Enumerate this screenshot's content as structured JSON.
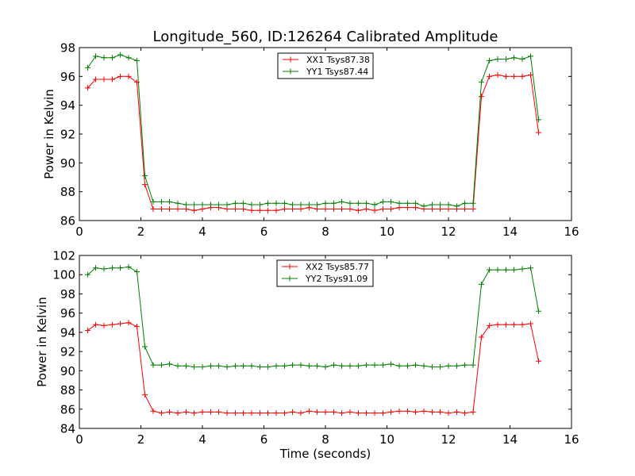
{
  "chart_data": [
    {
      "type": "line",
      "title": "Longitude_560, ID:126264 Calibrated Amplitude",
      "xlabel": "",
      "ylabel": "Power in Kelvin",
      "xlim": [
        0,
        16
      ],
      "ylim": [
        86,
        98
      ],
      "xticks": [
        "0",
        "2",
        "4",
        "6",
        "8",
        "10",
        "12",
        "14",
        "16"
      ],
      "yticks": [
        "86",
        "88",
        "90",
        "92",
        "94",
        "96",
        "98"
      ],
      "grid": false,
      "legend_position": "top-center",
      "x": [
        0.27,
        0.53,
        0.8,
        1.07,
        1.33,
        1.6,
        1.87,
        2.13,
        2.4,
        2.67,
        2.93,
        3.2,
        3.47,
        3.73,
        4.0,
        4.27,
        4.53,
        4.8,
        5.07,
        5.33,
        5.6,
        5.87,
        6.13,
        6.4,
        6.67,
        6.93,
        7.2,
        7.47,
        7.73,
        8.0,
        8.27,
        8.53,
        8.8,
        9.07,
        9.33,
        9.6,
        9.87,
        10.13,
        10.4,
        10.67,
        10.93,
        11.2,
        11.47,
        11.73,
        12.0,
        12.27,
        12.53,
        12.8,
        13.07,
        13.33,
        13.6,
        13.87,
        14.13,
        14.4,
        14.67,
        14.93,
        15.2
      ],
      "series": [
        {
          "name": "XX1 Tsys87.38",
          "color": "#ff0000",
          "values": [
            95.2,
            95.8,
            95.8,
            95.8,
            96.0,
            96.0,
            95.6,
            88.5,
            86.8,
            86.8,
            86.8,
            86.8,
            86.8,
            86.7,
            86.8,
            86.9,
            86.9,
            86.8,
            86.8,
            86.8,
            86.7,
            86.7,
            86.7,
            86.7,
            86.8,
            86.8,
            86.8,
            86.9,
            86.8,
            86.8,
            86.8,
            86.8,
            86.8,
            86.7,
            86.8,
            86.7,
            86.8,
            86.8,
            86.9,
            86.9,
            86.9,
            86.8,
            86.8,
            86.8,
            86.8,
            86.8,
            86.8,
            86.8,
            94.6,
            96.0,
            96.1,
            96.0,
            96.0,
            96.0,
            96.1,
            92.1,
            null
          ]
        },
        {
          "name": "YY1 Tsys87.44",
          "color": "#007f00",
          "values": [
            96.6,
            97.4,
            97.3,
            97.3,
            97.5,
            97.3,
            97.1,
            89.1,
            87.3,
            87.3,
            87.3,
            87.2,
            87.1,
            87.1,
            87.1,
            87.1,
            87.1,
            87.1,
            87.2,
            87.2,
            87.1,
            87.1,
            87.2,
            87.2,
            87.2,
            87.1,
            87.1,
            87.1,
            87.1,
            87.2,
            87.2,
            87.3,
            87.2,
            87.2,
            87.2,
            87.1,
            87.3,
            87.3,
            87.2,
            87.2,
            87.2,
            87.0,
            87.1,
            87.1,
            87.1,
            87.0,
            87.2,
            87.2,
            95.6,
            97.1,
            97.2,
            97.2,
            97.3,
            97.2,
            97.4,
            93.0,
            null
          ]
        }
      ]
    },
    {
      "type": "line",
      "title": "",
      "xlabel": "Time (seconds)",
      "ylabel": "Power in Kelvin",
      "xlim": [
        0,
        16
      ],
      "ylim": [
        84,
        102
      ],
      "xticks": [
        "0",
        "2",
        "4",
        "6",
        "8",
        "10",
        "12",
        "14",
        "16"
      ],
      "yticks": [
        "84",
        "86",
        "88",
        "90",
        "92",
        "94",
        "96",
        "98",
        "100",
        "102"
      ],
      "grid": false,
      "legend_position": "top-center",
      "x": [
        0.27,
        0.53,
        0.8,
        1.07,
        1.33,
        1.6,
        1.87,
        2.13,
        2.4,
        2.67,
        2.93,
        3.2,
        3.47,
        3.73,
        4.0,
        4.27,
        4.53,
        4.8,
        5.07,
        5.33,
        5.6,
        5.87,
        6.13,
        6.4,
        6.67,
        6.93,
        7.2,
        7.47,
        7.73,
        8.0,
        8.27,
        8.53,
        8.8,
        9.07,
        9.33,
        9.6,
        9.87,
        10.13,
        10.4,
        10.67,
        10.93,
        11.2,
        11.47,
        11.73,
        12.0,
        12.27,
        12.53,
        12.8,
        13.07,
        13.33,
        13.6,
        13.87,
        14.13,
        14.4,
        14.67,
        14.93,
        15.2
      ],
      "series": [
        {
          "name": "XX2 Tsys85.77",
          "color": "#ff0000",
          "values": [
            94.2,
            94.8,
            94.7,
            94.8,
            94.9,
            95.0,
            94.6,
            87.5,
            85.8,
            85.6,
            85.7,
            85.6,
            85.7,
            85.6,
            85.7,
            85.7,
            85.7,
            85.6,
            85.6,
            85.6,
            85.6,
            85.6,
            85.6,
            85.6,
            85.6,
            85.7,
            85.6,
            85.8,
            85.7,
            85.7,
            85.7,
            85.6,
            85.7,
            85.6,
            85.6,
            85.6,
            85.6,
            85.7,
            85.8,
            85.8,
            85.7,
            85.8,
            85.7,
            85.7,
            85.6,
            85.7,
            85.6,
            85.7,
            93.5,
            94.7,
            94.8,
            94.8,
            94.8,
            94.8,
            94.9,
            91.0,
            null
          ]
        },
        {
          "name": "YY2 Tsys91.09",
          "color": "#007f00",
          "values": [
            100.0,
            100.7,
            100.6,
            100.7,
            100.7,
            100.8,
            100.3,
            92.5,
            90.6,
            90.6,
            90.7,
            90.5,
            90.5,
            90.4,
            90.4,
            90.5,
            90.5,
            90.4,
            90.5,
            90.5,
            90.5,
            90.4,
            90.4,
            90.5,
            90.5,
            90.6,
            90.6,
            90.5,
            90.5,
            90.4,
            90.6,
            90.5,
            90.5,
            90.5,
            90.6,
            90.6,
            90.6,
            90.7,
            90.5,
            90.5,
            90.6,
            90.5,
            90.4,
            90.4,
            90.5,
            90.5,
            90.6,
            90.6,
            99.0,
            100.5,
            100.5,
            100.5,
            100.5,
            100.6,
            100.7,
            96.2,
            null
          ]
        }
      ]
    }
  ]
}
